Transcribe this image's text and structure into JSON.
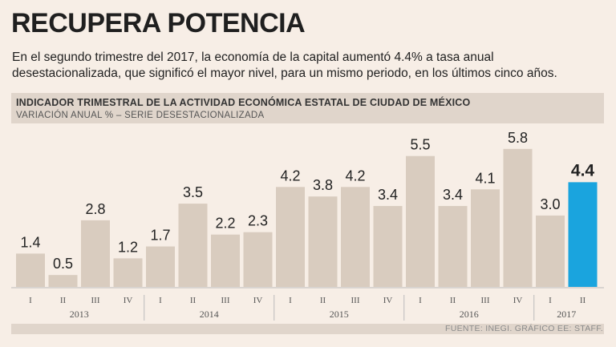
{
  "headline": "RECUPERA POTENCIA",
  "subtitle": "En el segundo trimestre del 2017, la economía de la capital aumentó 4.4% a tasa anual desestacionalizada, que significó el mayor nivel, para un mismo periodo, en los últimos cinco años.",
  "source": "FUENTE: INEGI. GRÁFICO EE: STAFF.",
  "colors": {
    "bar": "#d9ccbf",
    "highlight": "#1aa4de",
    "panel": "#e0d5cb",
    "background": "#f7eee6"
  },
  "chart_data": {
    "type": "bar",
    "title": "INDICADOR TRIMESTRAL DE LA ACTIVIDAD ECONÓMICA ESTATAL DE CIUDAD DE MÉXICO",
    "subtitle": "VARIACIÓN ANUAL % – SERIE DESESTACIONALIZADA",
    "categories": [
      "I",
      "II",
      "III",
      "IV",
      "I",
      "II",
      "III",
      "IV",
      "I",
      "II",
      "III",
      "IV",
      "I",
      "II",
      "III",
      "IV",
      "I",
      "II"
    ],
    "values": [
      1.4,
      0.5,
      2.8,
      1.2,
      1.7,
      3.5,
      2.2,
      2.3,
      4.2,
      3.8,
      4.2,
      3.4,
      5.5,
      3.4,
      4.1,
      5.8,
      3.0,
      4.4
    ],
    "value_labels": [
      "1.4",
      "0.5",
      "2.8",
      "1.2",
      "1.7",
      "3.5",
      "2.2",
      "2.3",
      "4.2",
      "3.8",
      "4.2",
      "3.4",
      "5.5",
      "3.4",
      "4.1",
      "5.8",
      "3.0",
      "4.4"
    ],
    "years": [
      {
        "label": "2013",
        "quarters": 4
      },
      {
        "label": "2014",
        "quarters": 4
      },
      {
        "label": "2015",
        "quarters": 4
      },
      {
        "label": "2016",
        "quarters": 4
      },
      {
        "label": "2017",
        "quarters": 2
      }
    ],
    "highlight_index": 17,
    "ylim": [
      0,
      6.4
    ],
    "xlabel": "",
    "ylabel": ""
  }
}
